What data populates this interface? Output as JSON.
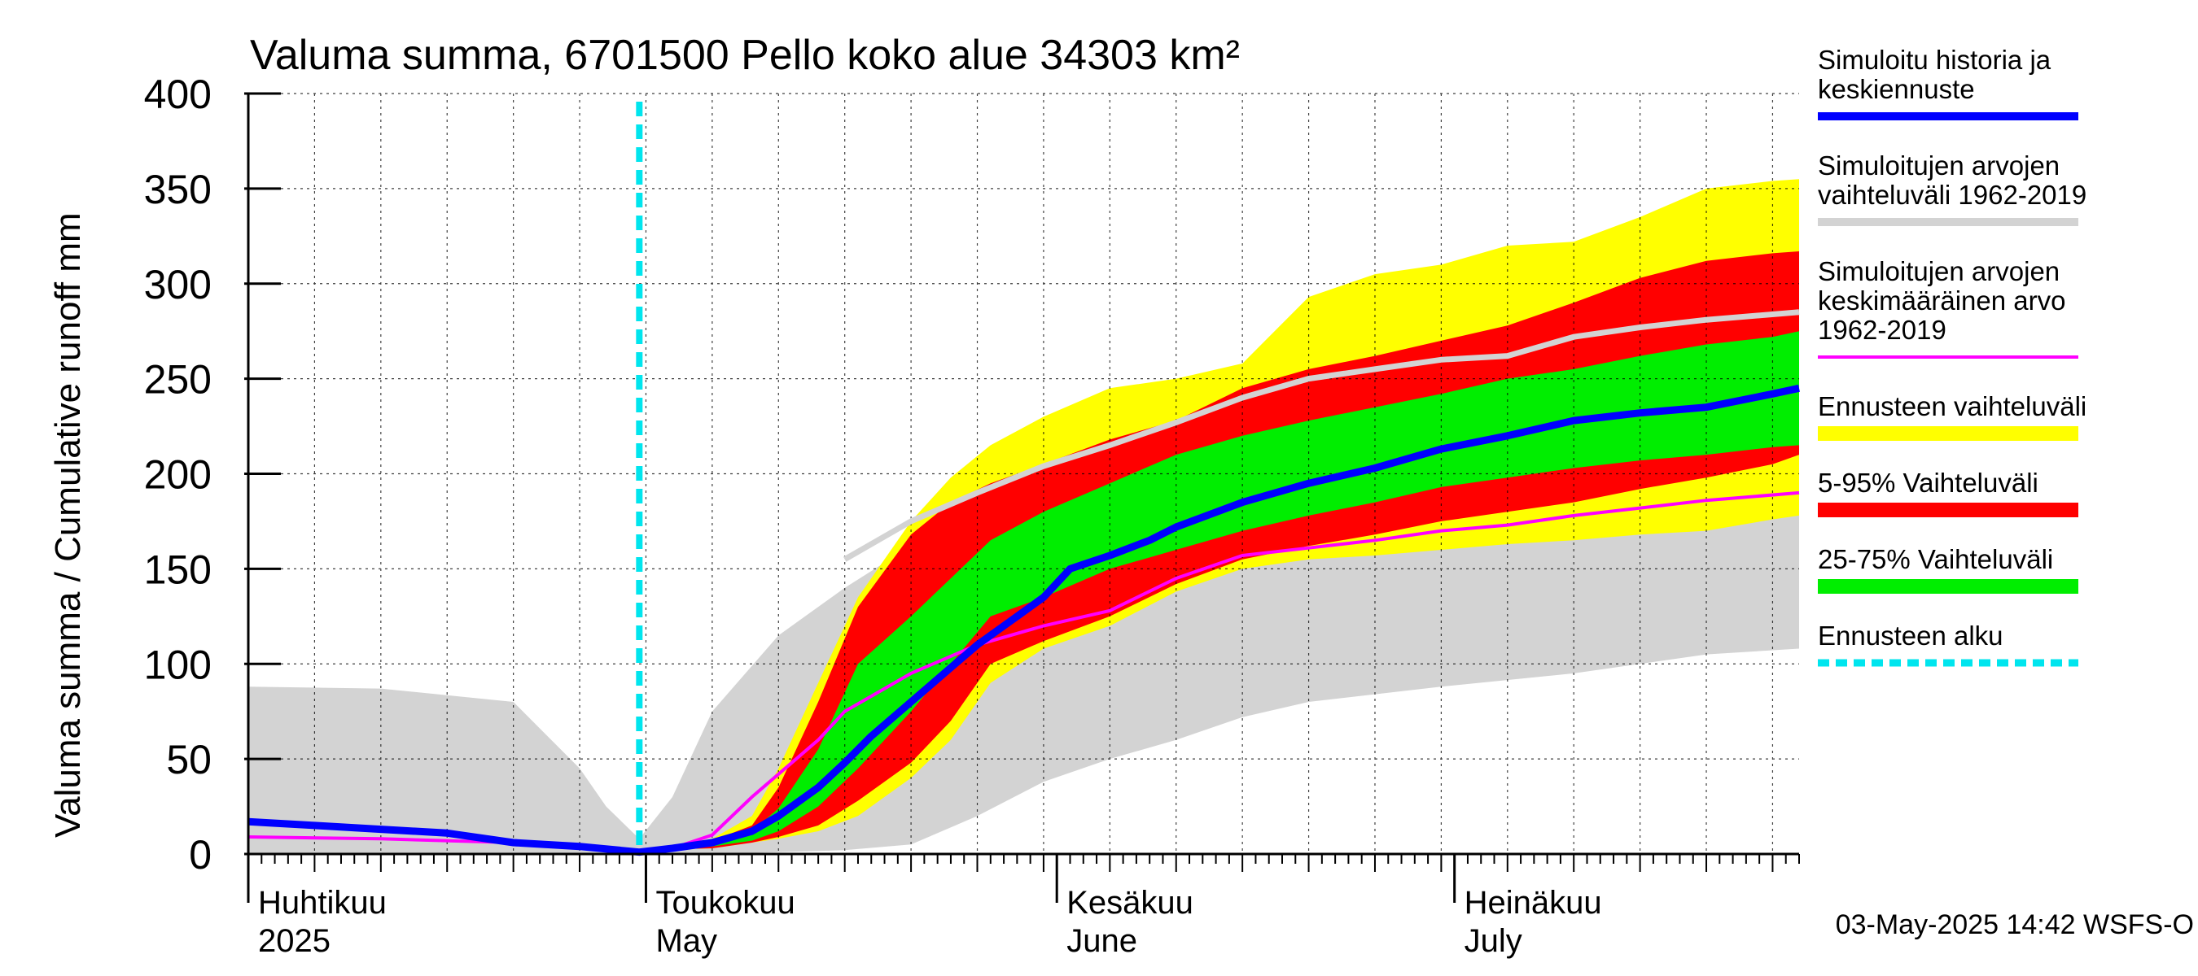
{
  "chart_data": {
    "type": "area",
    "title": "Valuma summa, 6701500 Pello koko alue 34303 km²",
    "ylabel": "Valuma summa / Cumulative runoff    mm",
    "ylim": [
      0,
      400
    ],
    "yticks": [
      "0",
      "50",
      "100",
      "150",
      "200",
      "250",
      "300",
      "350",
      "400"
    ],
    "xlim_days": [
      0,
      117
    ],
    "month_labels": [
      {
        "day": 0,
        "fi": "Huhtikuu",
        "en": "2025"
      },
      {
        "day": 30,
        "fi": "Toukokuu",
        "en": "May"
      },
      {
        "day": 61,
        "fi": "Kesäkuu",
        "en": "June"
      },
      {
        "day": 91,
        "fi": "Heinäkuu",
        "en": "July"
      }
    ],
    "forecast_start_day": 29.5,
    "timestamp": "03-May-2025 14:42 WSFS-O",
    "legend": [
      {
        "key": "sim",
        "label": [
          "Simuloitu historia ja",
          "keskiennuste"
        ],
        "color": "#0000ff",
        "style": "thick"
      },
      {
        "key": "hist_range",
        "label": [
          "Simuloitujen arvojen",
          "vaihteluväli 1962-2019"
        ],
        "color": "#d3d3d3",
        "style": "thick"
      },
      {
        "key": "hist_mean",
        "label": [
          "Simuloitujen arvojen",
          "keskimääräinen arvo",
          "   1962-2019"
        ],
        "color": "#ff00ff",
        "style": "thin"
      },
      {
        "key": "fc_range",
        "label": [
          "Ennusteen vaihteluväli"
        ],
        "color": "#ffff00",
        "style": "band"
      },
      {
        "key": "p5_95",
        "label": [
          "5-95% Vaihteluväli"
        ],
        "color": "#ff0000",
        "style": "band"
      },
      {
        "key": "p25_75",
        "label": [
          "25-75% Vaihteluväli"
        ],
        "color": "#00ee00",
        "style": "band"
      },
      {
        "key": "fc_start",
        "label": [
          "Ennusteen alku"
        ],
        "color": "#00e5ee",
        "style": "dashed"
      }
    ],
    "series": {
      "hist_range": {
        "x": [
          0,
          10,
          20,
          25,
          27,
          29.5,
          32,
          35,
          40,
          45,
          50,
          55,
          60,
          65,
          70,
          75,
          80,
          90,
          100,
          110,
          117
        ],
        "upper": [
          88,
          87,
          80,
          45,
          25,
          8,
          30,
          75,
          115,
          140,
          162,
          175,
          188,
          200,
          212,
          222,
          238,
          258,
          270,
          285,
          292
        ],
        "lower": [
          0,
          0,
          0,
          0,
          0,
          0,
          0,
          0,
          1,
          2,
          5,
          20,
          38,
          50,
          60,
          72,
          80,
          88,
          95,
          105,
          108
        ]
      },
      "fc_range": {
        "x": [
          29.5,
          35,
          38,
          40,
          43,
          46,
          50,
          53,
          56,
          60,
          65,
          70,
          75,
          80,
          85,
          90,
          95,
          100,
          105,
          110,
          115,
          117
        ],
        "upper": [
          2,
          8,
          20,
          45,
          90,
          135,
          175,
          198,
          215,
          230,
          245,
          250,
          258,
          293,
          305,
          310,
          320,
          322,
          335,
          350,
          354,
          355
        ],
        "lower": [
          2,
          3,
          6,
          8,
          12,
          20,
          40,
          60,
          90,
          108,
          120,
          138,
          150,
          155,
          157,
          160,
          163,
          165,
          168,
          170,
          176,
          178
        ]
      },
      "p5_95": {
        "x": [
          29.5,
          35,
          38,
          40,
          43,
          46,
          50,
          53,
          56,
          60,
          65,
          70,
          75,
          80,
          85,
          90,
          95,
          100,
          105,
          110,
          115,
          117
        ],
        "upper": [
          2,
          7,
          15,
          35,
          80,
          130,
          168,
          185,
          195,
          205,
          218,
          228,
          245,
          255,
          262,
          270,
          278,
          290,
          303,
          312,
          316,
          317
        ],
        "lower": [
          2,
          3,
          6,
          9,
          15,
          28,
          48,
          70,
          100,
          112,
          125,
          142,
          155,
          162,
          168,
          175,
          180,
          185,
          192,
          198,
          205,
          210
        ]
      },
      "p25_75": {
        "x": [
          29.5,
          35,
          38,
          40,
          43,
          46,
          50,
          53,
          56,
          60,
          65,
          70,
          75,
          80,
          85,
          90,
          95,
          100,
          105,
          110,
          115,
          117
        ],
        "upper": [
          2,
          6,
          12,
          24,
          55,
          100,
          125,
          145,
          165,
          180,
          195,
          210,
          220,
          228,
          235,
          242,
          250,
          255,
          262,
          268,
          272,
          275
        ],
        "lower": [
          2,
          4,
          7,
          12,
          25,
          45,
          75,
          100,
          125,
          135,
          150,
          160,
          170,
          178,
          185,
          193,
          198,
          203,
          207,
          210,
          214,
          215
        ]
      },
      "hist_mean": {
        "x": [
          0,
          10,
          20,
          25,
          29.5,
          32,
          35,
          38,
          40,
          43,
          45,
          47,
          50,
          55,
          60,
          65,
          70,
          75,
          80,
          85,
          90,
          95,
          100,
          105,
          110,
          117
        ],
        "y": [
          9,
          8,
          6,
          4,
          1,
          3,
          10,
          30,
          42,
          60,
          75,
          83,
          95,
          110,
          120,
          128,
          145,
          157,
          161,
          165,
          170,
          173,
          178,
          182,
          186,
          190
        ]
      },
      "hist_sim_grey": {
        "x": [
          45,
          50,
          55,
          60,
          65,
          70,
          75,
          80,
          85,
          90,
          95,
          100,
          105,
          110,
          117
        ],
        "y": [
          155,
          175,
          190,
          204,
          215,
          227,
          240,
          250,
          255,
          260,
          262,
          272,
          277,
          281,
          285
        ]
      },
      "sim": {
        "x": [
          0,
          5,
          10,
          15,
          20,
          25,
          29.5,
          32,
          35,
          38,
          40,
          43,
          45,
          47,
          50,
          53,
          55,
          58,
          60,
          62,
          65,
          68,
          70,
          75,
          80,
          85,
          90,
          95,
          100,
          105,
          110,
          115,
          117
        ],
        "y": [
          17,
          15,
          13,
          11,
          6,
          4,
          1,
          3,
          6,
          12,
          20,
          35,
          48,
          62,
          80,
          98,
          110,
          125,
          135,
          150,
          157,
          165,
          172,
          185,
          195,
          203,
          213,
          220,
          228,
          232,
          235,
          242,
          245
        ]
      }
    }
  }
}
